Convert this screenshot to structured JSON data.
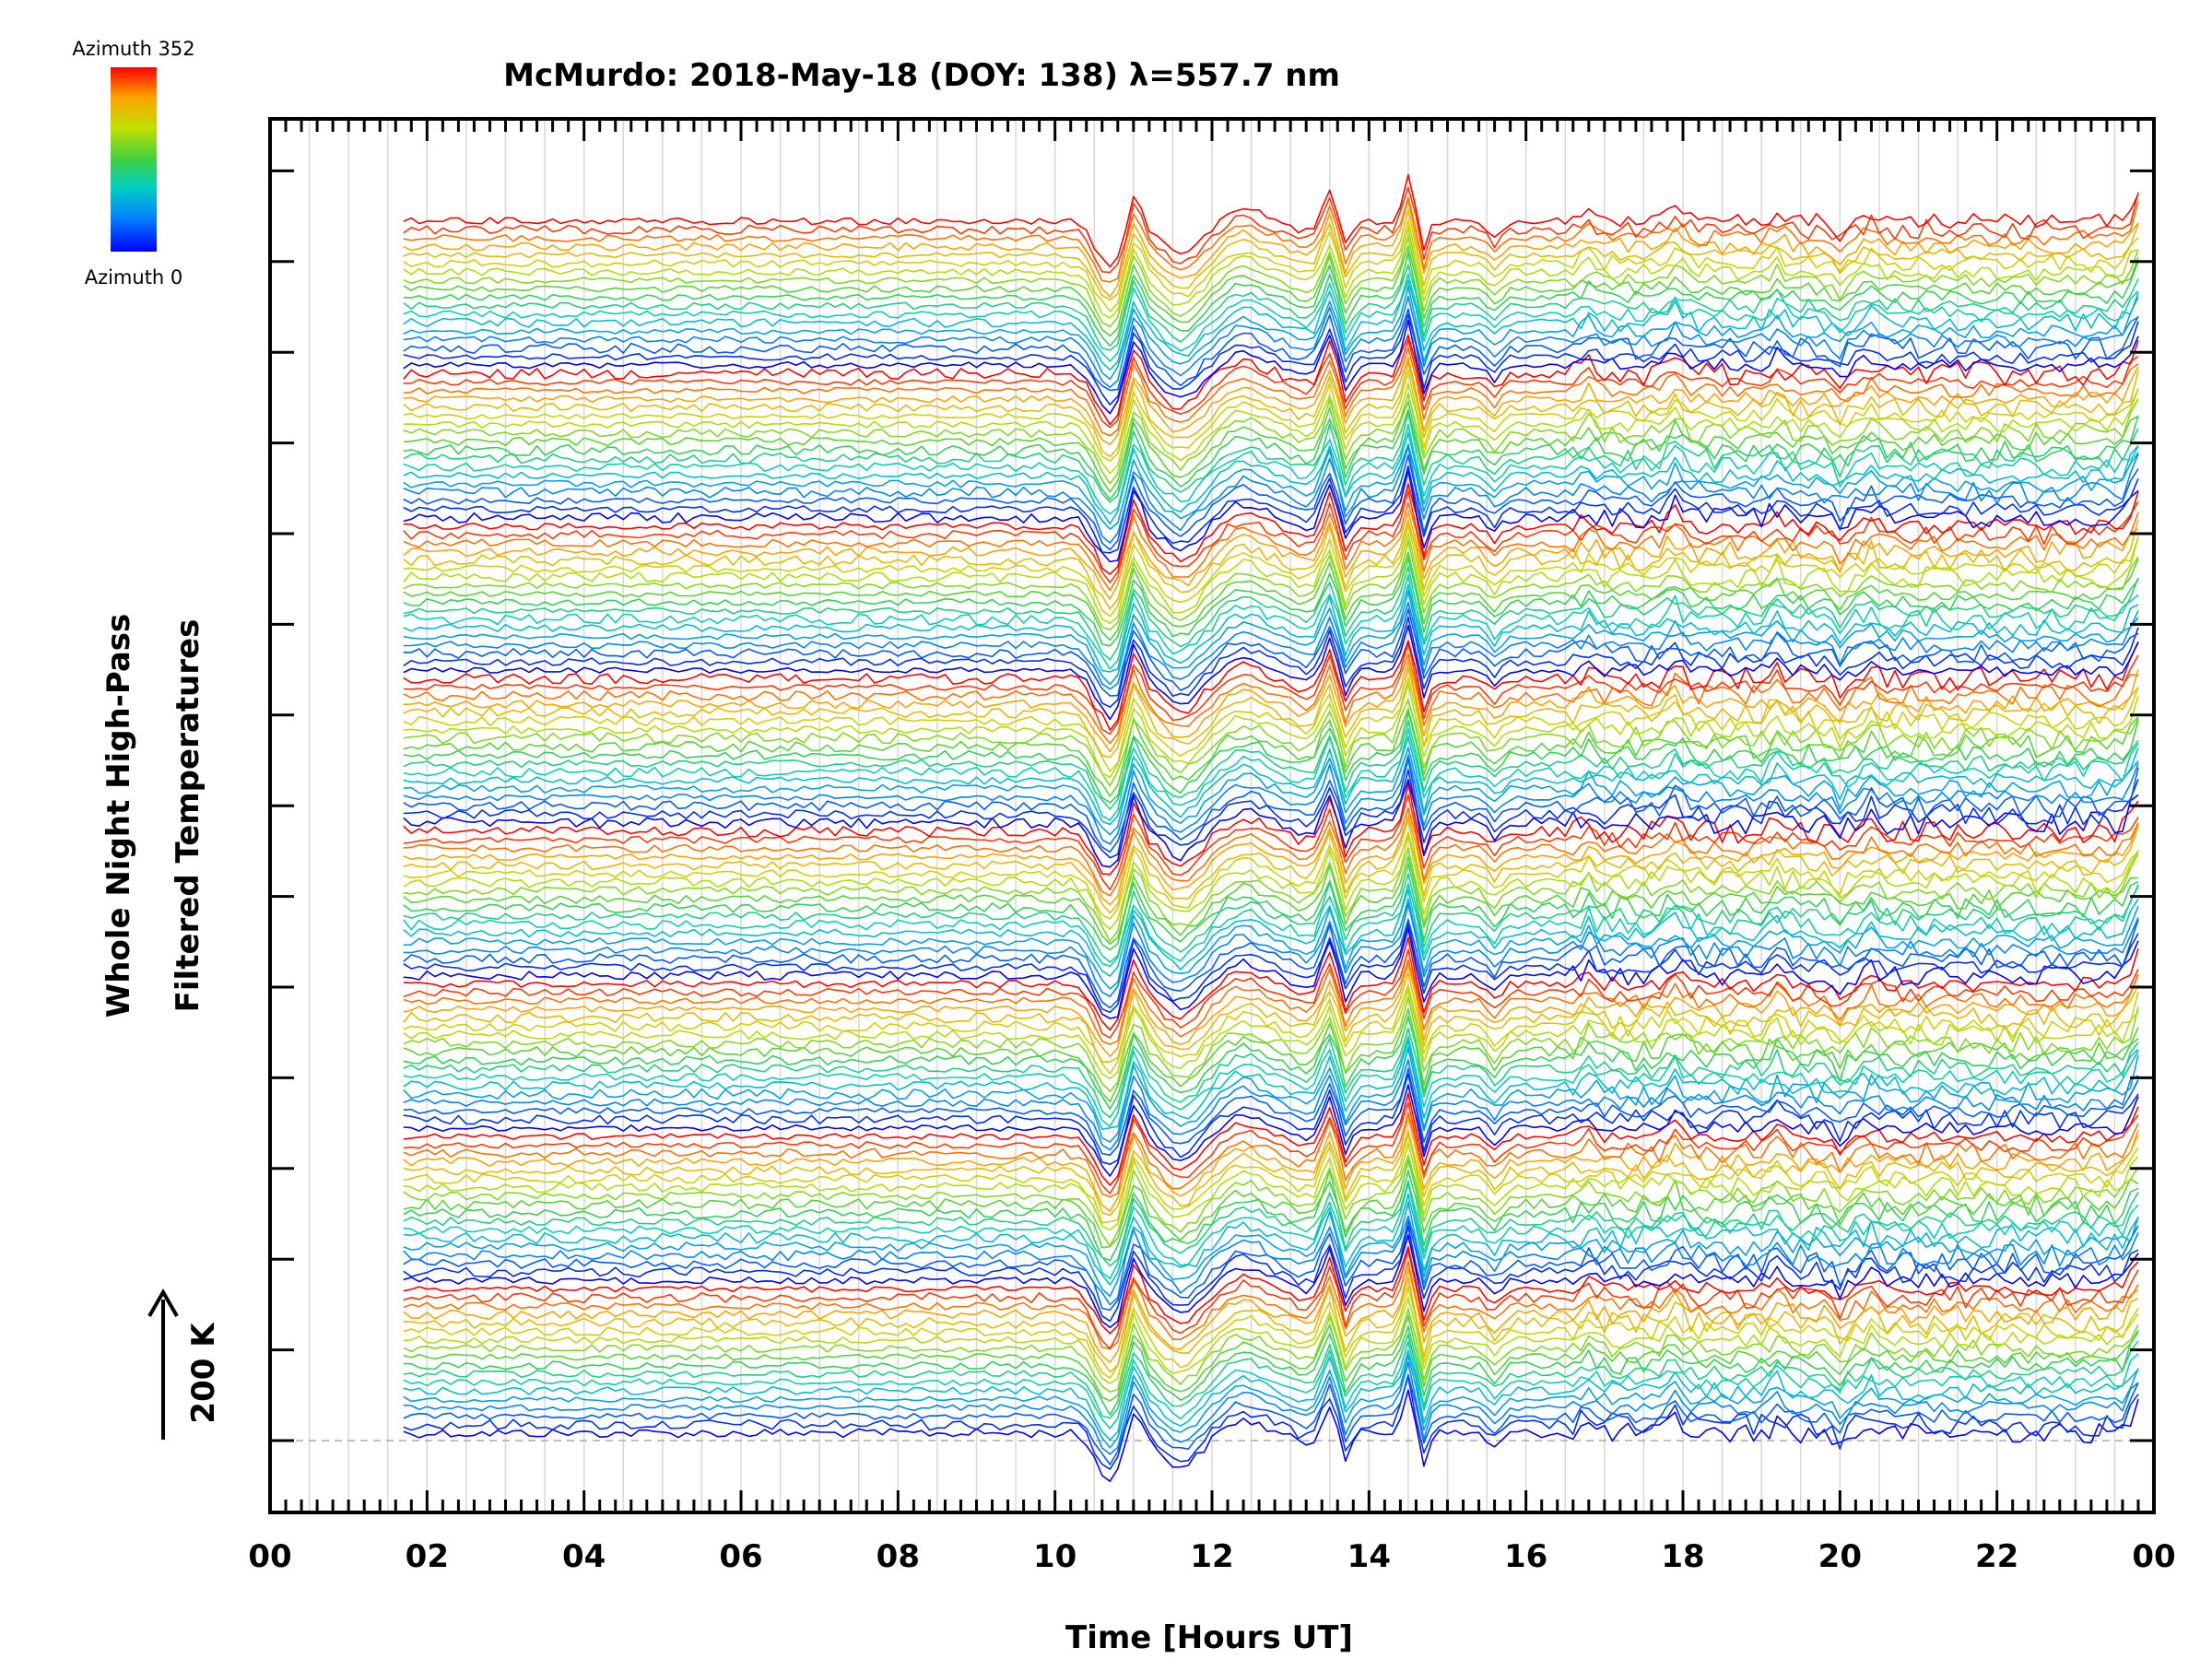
{
  "chart_data": {
    "type": "line",
    "title": "McMurdo: 2018-May-18 (DOY: 138) λ=557.7 nm",
    "xlabel": "Time [Hours UT]",
    "ylabel_line1": "Whole Night High-Pass",
    "ylabel_line2": "Filtered Temperatures",
    "scale_label": "200 K",
    "scale_arrow": "↑",
    "x_range": [
      0,
      24
    ],
    "x_ticks": [
      "00",
      "02",
      "04",
      "06",
      "08",
      "10",
      "12",
      "14",
      "16",
      "18",
      "20",
      "22",
      "00"
    ],
    "data_start_hour": 1.7,
    "data_end_hour": 23.8,
    "n_traces": 144,
    "n_groups": 8,
    "traces_per_group": 18,
    "colorbar": {
      "top_label": "Azimuth 352",
      "bottom_label": "Azimuth 0",
      "colors": [
        "#0000ff",
        "#0080ff",
        "#00d0c0",
        "#40d040",
        "#c0e000",
        "#ffa000",
        "#ff0000"
      ]
    },
    "disturbance_events": [
      {
        "hour": 10.7,
        "amp": -2.8,
        "width": 0.25
      },
      {
        "hour": 11.0,
        "amp": 2.2,
        "width": 0.12
      },
      {
        "hour": 11.6,
        "amp": -2.0,
        "width": 0.35
      },
      {
        "hour": 12.4,
        "amp": 0.8,
        "width": 0.3
      },
      {
        "hour": 13.2,
        "amp": -0.6,
        "width": 0.25
      },
      {
        "hour": 13.5,
        "amp": 2.0,
        "width": 0.12
      },
      {
        "hour": 13.7,
        "amp": -1.6,
        "width": 0.1
      },
      {
        "hour": 14.5,
        "amp": 2.6,
        "width": 0.1
      },
      {
        "hour": 14.7,
        "amp": -1.8,
        "width": 0.08
      },
      {
        "hour": 15.6,
        "amp": -0.9,
        "width": 0.12
      },
      {
        "hour": 16.8,
        "amp": 0.6,
        "width": 0.1
      },
      {
        "hour": 17.9,
        "amp": 0.8,
        "width": 0.12
      },
      {
        "hour": 19.2,
        "amp": 0.7,
        "width": 0.1
      },
      {
        "hour": 20.0,
        "amp": -0.8,
        "width": 0.1
      },
      {
        "hour": 20.4,
        "amp": 0.5,
        "width": 0.1
      },
      {
        "hour": 23.8,
        "amp": 1.8,
        "width": 0.12
      }
    ]
  }
}
